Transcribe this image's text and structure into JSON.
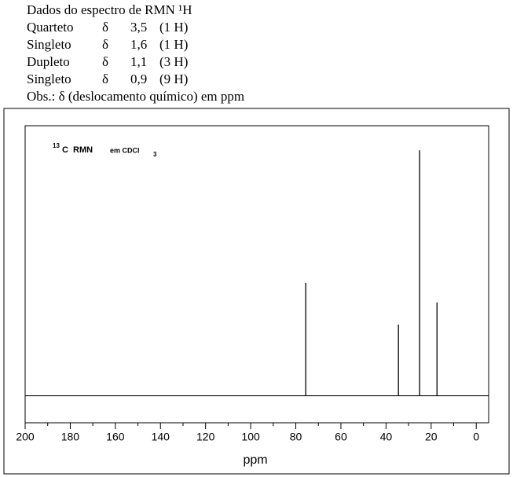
{
  "nmr_1h": {
    "title": "Dados do espectro de RMN ¹H",
    "rows": [
      [
        "Quarteto",
        "δ",
        "3,5",
        "(1 H)"
      ],
      [
        "Singleto",
        "δ",
        "1,6",
        "(1 H)"
      ],
      [
        "Dupleto",
        "δ",
        "1,1",
        "(3 H)"
      ],
      [
        "Singleto",
        "δ",
        "0,9",
        "(9 H)"
      ]
    ],
    "note": "Obs.: δ (deslocamento químico) em ppm"
  },
  "chart_data": {
    "type": "stick",
    "annotation": [
      "13",
      "C  RMN",
      "em CDCl",
      "3"
    ],
    "x_label": "ppm",
    "x": [
      75.6,
      34.5,
      25.1,
      17.4
    ],
    "values": [
      46,
      29,
      100,
      38
    ],
    "color": "#000000",
    "xlim": [
      200,
      -5.5
    ],
    "ylim": [
      -11,
      110
    ],
    "xticks": [
      200,
      180,
      160,
      140,
      120,
      100,
      80,
      60,
      40,
      20,
      0
    ],
    "xminorticks": [
      190,
      170,
      150,
      130,
      110,
      90,
      70,
      50,
      30,
      10
    ]
  }
}
